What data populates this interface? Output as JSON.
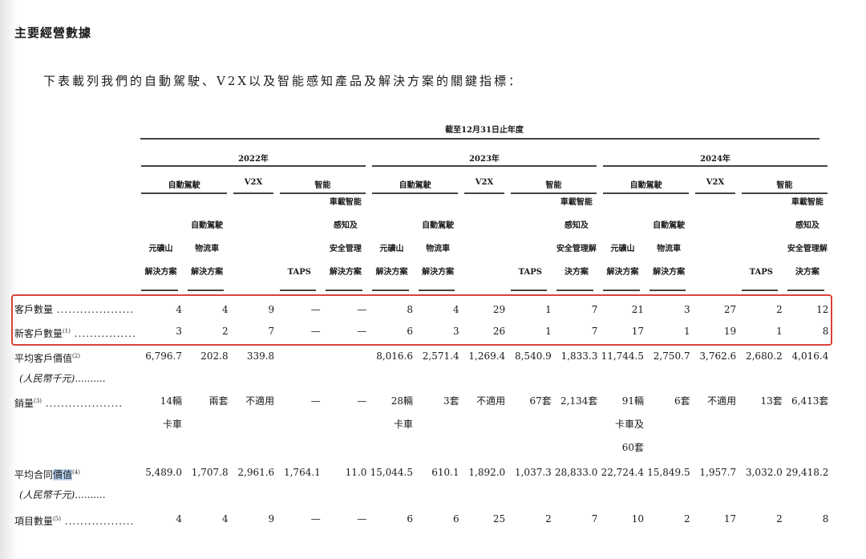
{
  "section_title": "主要經營數據",
  "intro": "下表載列我們的自動駕駛、V2X以及智能感知產品及解決方案的關鍵指標：",
  "period_header": "截至12月31日止年度",
  "years": [
    "2022年",
    "2023年",
    "2024年"
  ],
  "groups": [
    "自動駕駛",
    "V2X",
    "智能"
  ],
  "sub_headers": [
    "元礦山\n解決方案",
    "自動駕駛\n物流車\n解決方案",
    "",
    "TAPS",
    "車載智能\n感知及\n安全管理\n解決方案"
  ],
  "sub_headers_alt": [
    "元礦山\n解決方案",
    "自動駕駛\n物流車\n解決方案",
    "",
    "TAPS",
    "車載智能\n感知及\n安全管理解\n決方案"
  ],
  "rows": [
    {
      "label": "客戶數量",
      "sup": "",
      "values": [
        "4",
        "4",
        "9",
        "—",
        "—",
        "8",
        "4",
        "29",
        "1",
        "7",
        "21",
        "3",
        "27",
        "2",
        "12"
      ]
    },
    {
      "label": "新客戶數量",
      "sup": "(1)",
      "values": [
        "3",
        "2",
        "7",
        "—",
        "—",
        "6",
        "3",
        "26",
        "1",
        "7",
        "17",
        "1",
        "19",
        "1",
        "8"
      ]
    },
    {
      "label": "平均客戶價值",
      "sup": "(2)",
      "sublabel": "(人民幣千元)",
      "values": [
        "6,796.7",
        "202.8",
        "339.8",
        "",
        "",
        "8,016.6",
        "2,571.4",
        "1,269.4",
        "8,540.9",
        "1,833.3",
        "11,744.5",
        "2,750.7",
        "3,762.6",
        "2,680.2",
        "4,016.4"
      ]
    },
    {
      "label": "銷量",
      "sup": "(3)",
      "values": [
        "14輛\n卡車",
        "兩套",
        "不適用",
        "—",
        "—",
        "28輛\n卡車",
        "3套",
        "不適用",
        "67套",
        "2,134套",
        "91輛\n卡車及\n60套",
        "6套",
        "不適用",
        "13套",
        "6,413套"
      ]
    },
    {
      "label": "平均合同",
      "label_highlight": "價值",
      "sup": "(4)",
      "sublabel": "(人民幣千元)",
      "values": [
        "5,489.0",
        "1,707.8",
        "2,961.6",
        "1,764.1",
        "11.0",
        "15,044.5",
        "610.1",
        "1,892.0",
        "1,037.3",
        "28,833.0",
        "22,724.4",
        "15,849.5",
        "1,957.7",
        "3,032.0",
        "29,418.2"
      ]
    },
    {
      "label": "項目數量",
      "sup": "(5)",
      "values": [
        "4",
        "4",
        "9",
        "—",
        "—",
        "6",
        "6",
        "25",
        "2",
        "7",
        "10",
        "2",
        "17",
        "2",
        "8"
      ]
    }
  ],
  "highlight_color": "#d9433c"
}
